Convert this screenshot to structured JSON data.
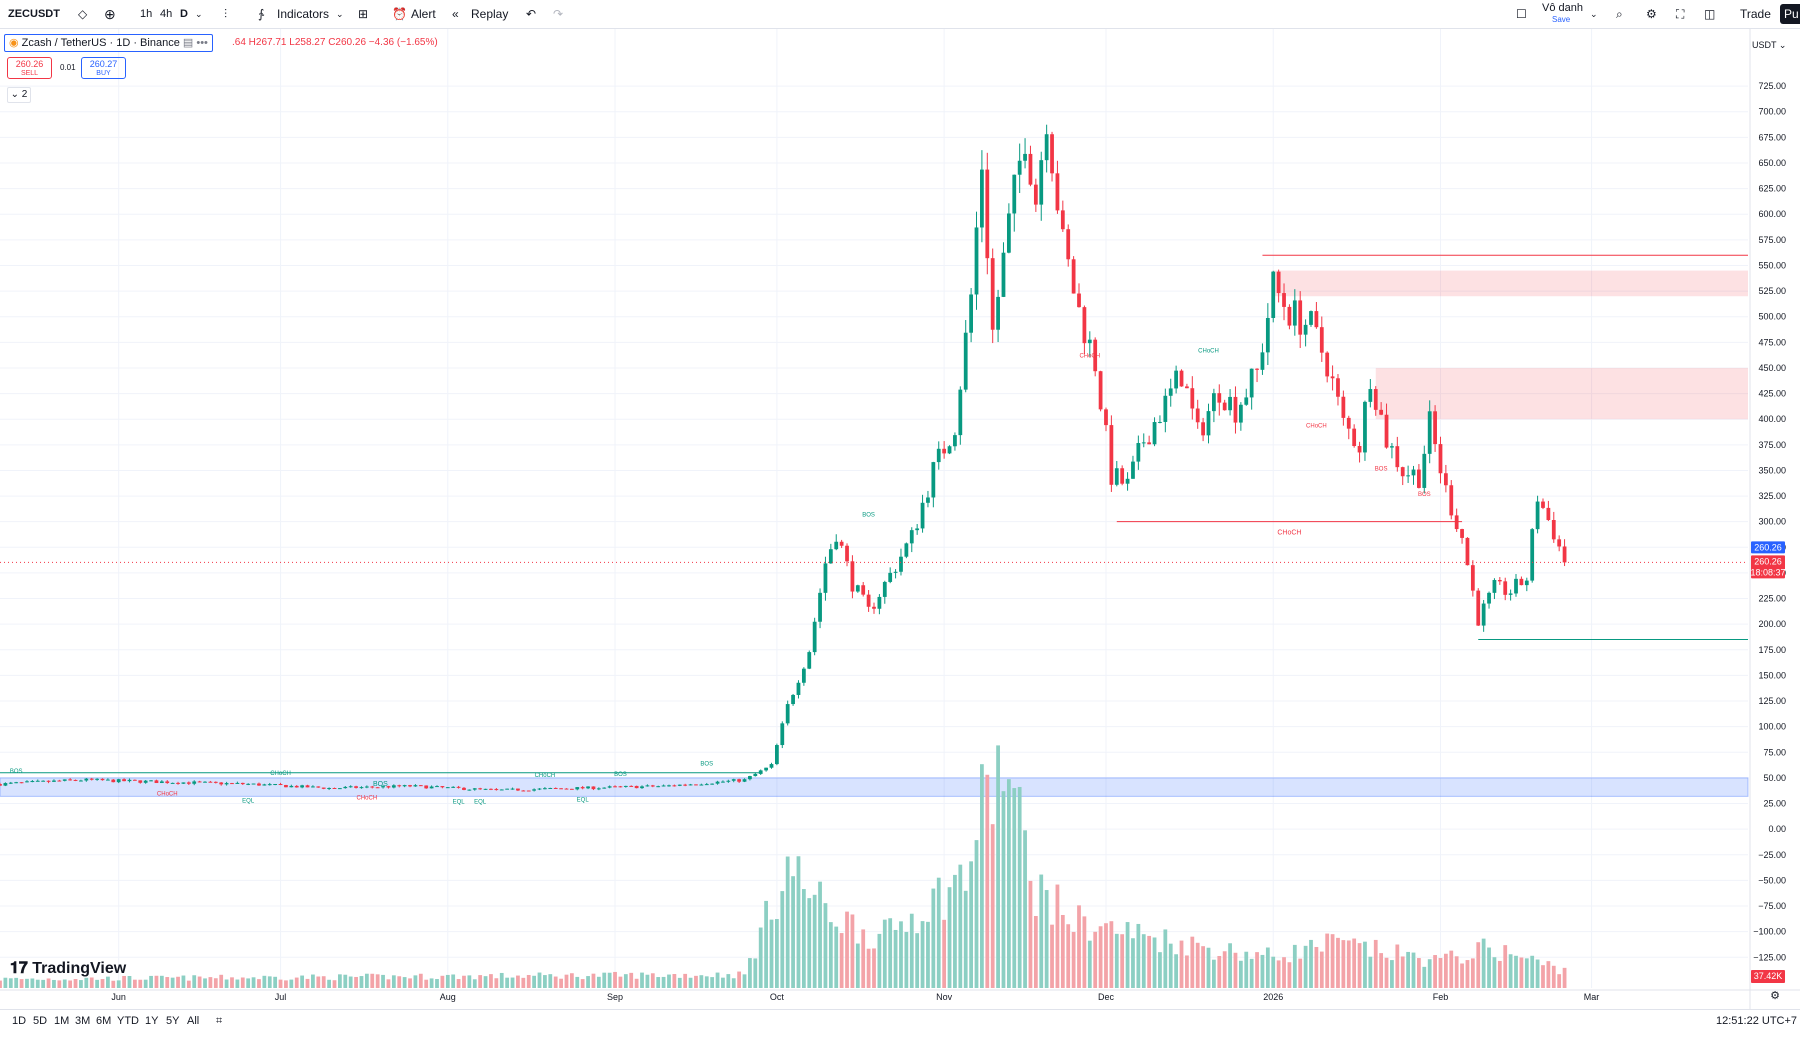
{
  "toolbar": {
    "symbol": "ZECUSDT",
    "tf_1h": "1h",
    "tf_4h": "4h",
    "tf_d": "D",
    "indicators": "Indicators",
    "alert": "Alert",
    "replay": "Replay",
    "user_name": "Vô danh",
    "save": "Save",
    "trade": "Trade",
    "publish": "Pu"
  },
  "legend": {
    "title": "Zcash / TetherUS · 1D · Binance",
    "ohlc": ".64 H267.71 L258.27 C260.26 −4.36 (−1.65%)"
  },
  "trade": {
    "sell_price": "260.26",
    "sell_label": "SELL",
    "spread": "0.01",
    "buy_price": "260.27",
    "buy_label": "BUY",
    "collapse": "2"
  },
  "price_axis": {
    "currency": "USDT",
    "current_price": "260.26",
    "current_price_2": "260.26",
    "countdown": "18:08:37",
    "volume_label": "37.42K"
  },
  "bottom": {
    "ranges": [
      "1D",
      "5D",
      "1M",
      "3M",
      "6M",
      "YTD",
      "1Y",
      "5Y",
      "All"
    ],
    "clock": "12:51:22 UTC+7"
  },
  "branding": {
    "logo_text": "TradingView"
  },
  "colors": {
    "up": "#089981",
    "down": "#f23645",
    "up_vol": "#8ccfc3",
    "down_vol": "#f3a3a8",
    "zone": "#2962ff"
  },
  "chart_data": {
    "type": "candlestick",
    "title": "Zcash / TetherUS · 1D · Binance",
    "y_ticks": [
      725,
      700,
      675,
      650,
      625,
      600,
      575,
      550,
      525,
      500,
      475,
      450,
      425,
      400,
      375,
      350,
      325,
      300,
      275,
      250,
      225,
      200,
      175,
      150,
      125,
      100,
      75,
      50,
      25,
      0,
      -25,
      -50,
      -75,
      -100,
      -125
    ],
    "y_tick_labels": [
      "725.00",
      "700.00",
      "675.00",
      "650.00",
      "625.00",
      "600.00",
      "575.00",
      "550.00",
      "525.00",
      "500.00",
      "475.00",
      "450.00",
      "425.00",
      "400.00",
      "375.00",
      "350.00",
      "325.00",
      "300.00",
      "275.00",
      "250.00",
      "225.00",
      "200.00",
      "175.00",
      "150.00",
      "125.00",
      "100.00",
      "75.00",
      "50.00",
      "25.00",
      "0.00",
      "−25.00",
      "−50.00",
      "−75.00",
      "−100.00",
      "−125.00"
    ],
    "ylim": [
      -155,
      770
    ],
    "x_labels": [
      {
        "label": "Jun",
        "date": "2025-06-01"
      },
      {
        "label": "Jul",
        "date": "2025-07-01"
      },
      {
        "label": "Aug",
        "date": "2025-08-01"
      },
      {
        "label": "Sep",
        "date": "2025-09-01"
      },
      {
        "label": "Oct",
        "date": "2025-10-01"
      },
      {
        "label": "Nov",
        "date": "2025-11-01"
      },
      {
        "label": "Dec",
        "date": "2025-12-01"
      },
      {
        "label": "2026",
        "date": "2026-01-01"
      },
      {
        "label": "Feb",
        "date": "2026-02-01"
      },
      {
        "label": "Mar",
        "date": "2026-03-01"
      }
    ],
    "x_range": [
      "2025-05-10",
      "2026-03-30"
    ],
    "price_path": [
      [
        "2025-05-10",
        44
      ],
      [
        "2025-05-25",
        48
      ],
      [
        "2025-06-10",
        46
      ],
      [
        "2025-06-25",
        44
      ],
      [
        "2025-07-10",
        40
      ],
      [
        "2025-07-25",
        42
      ],
      [
        "2025-08-10",
        38
      ],
      [
        "2025-08-25",
        40
      ],
      [
        "2025-09-10",
        42
      ],
      [
        "2025-09-25",
        48
      ],
      [
        "2025-09-30",
        62
      ],
      [
        "2025-10-03",
        120
      ],
      [
        "2025-10-07",
        175
      ],
      [
        "2025-10-10",
        260
      ],
      [
        "2025-10-12",
        290
      ],
      [
        "2025-10-15",
        240
      ],
      [
        "2025-10-18",
        212
      ],
      [
        "2025-10-22",
        248
      ],
      [
        "2025-10-26",
        285
      ],
      [
        "2025-10-30",
        350
      ],
      [
        "2025-11-03",
        395
      ],
      [
        "2025-11-06",
        520
      ],
      [
        "2025-11-08",
        650
      ],
      [
        "2025-11-10",
        485
      ],
      [
        "2025-11-13",
        590
      ],
      [
        "2025-11-16",
        680
      ],
      [
        "2025-11-18",
        615
      ],
      [
        "2025-11-20",
        700
      ],
      [
        "2025-11-23",
        570
      ],
      [
        "2025-11-26",
        505
      ],
      [
        "2025-11-29",
        455
      ],
      [
        "2025-12-02",
        345
      ],
      [
        "2025-12-05",
        335
      ],
      [
        "2025-12-08",
        380
      ],
      [
        "2025-12-12",
        415
      ],
      [
        "2025-12-15",
        445
      ],
      [
        "2025-12-18",
        385
      ],
      [
        "2025-12-22",
        430
      ],
      [
        "2025-12-25",
        410
      ],
      [
        "2025-12-29",
        445
      ],
      [
        "2026-01-01",
        530
      ],
      [
        "2026-01-04",
        505
      ],
      [
        "2026-01-08",
        490
      ],
      [
        "2026-01-11",
        455
      ],
      [
        "2026-01-14",
        395
      ],
      [
        "2026-01-17",
        375
      ],
      [
        "2026-01-19",
        445
      ],
      [
        "2026-01-22",
        380
      ],
      [
        "2026-01-25",
        350
      ],
      [
        "2026-01-28",
        345
      ],
      [
        "2026-01-30",
        395
      ],
      [
        "2026-02-02",
        330
      ],
      [
        "2026-02-05",
        285
      ],
      [
        "2026-02-08",
        205
      ],
      [
        "2026-02-11",
        235
      ],
      [
        "2026-02-14",
        232
      ],
      [
        "2026-02-17",
        245
      ],
      [
        "2026-02-19",
        325
      ],
      [
        "2026-02-22",
        290
      ],
      [
        "2026-02-24",
        260.26
      ]
    ],
    "volume_profile": [
      [
        "2025-05-10",
        0.04
      ],
      [
        "2025-09-25",
        0.06
      ],
      [
        "2025-10-03",
        0.55
      ],
      [
        "2025-10-10",
        0.35
      ],
      [
        "2025-10-20",
        0.22
      ],
      [
        "2025-11-05",
        0.5
      ],
      [
        "2025-11-08",
        0.8
      ],
      [
        "2025-11-12",
        1.0
      ],
      [
        "2025-11-18",
        0.45
      ],
      [
        "2025-11-25",
        0.3
      ],
      [
        "2025-12-05",
        0.25
      ],
      [
        "2025-12-20",
        0.18
      ],
      [
        "2026-01-01",
        0.14
      ],
      [
        "2026-01-12",
        0.2
      ],
      [
        "2026-02-01",
        0.12
      ],
      [
        "2026-02-10",
        0.18
      ],
      [
        "2026-02-24",
        0.08
      ]
    ],
    "current_price": 260.26,
    "zones": [
      {
        "type": "supply",
        "from": "2026-01-01",
        "to": "2026-03-30",
        "low": 520,
        "high": 545
      },
      {
        "type": "supply",
        "from": "2026-01-20",
        "to": "2026-03-30",
        "low": 400,
        "high": 450
      },
      {
        "type": "demand",
        "from": "2025-05-10",
        "to": "2026-03-30",
        "low": 32,
        "high": 50
      }
    ],
    "levels": [
      {
        "price": 560,
        "from": "2025-12-30",
        "to": "2026-03-30",
        "color": "down"
      },
      {
        "price": 300,
        "from": "2025-12-03",
        "to": "2026-02-05",
        "color": "down",
        "label": "CHoCH"
      },
      {
        "price": 185,
        "from": "2026-02-08",
        "to": "2026-03-30",
        "color": "up"
      },
      {
        "price": 55,
        "from": "2025-05-10",
        "to": "2025-09-28",
        "color": "up",
        "label": "BOS"
      }
    ],
    "annotations": [
      {
        "text": "BOS",
        "date": "2025-10-18",
        "price": 305,
        "color": "up"
      },
      {
        "text": "CHoCH",
        "date": "2025-11-28",
        "price": 460,
        "color": "down"
      },
      {
        "text": "CHoCH",
        "date": "2025-12-20",
        "price": 465,
        "color": "up"
      },
      {
        "text": "CHoCH",
        "date": "2026-01-09",
        "price": 392,
        "color": "down"
      },
      {
        "text": "BOS",
        "date": "2026-01-21",
        "price": 350,
        "color": "down"
      },
      {
        "text": "BOS",
        "date": "2026-01-29",
        "price": 325,
        "color": "down"
      },
      {
        "text": "BOS",
        "date": "2025-05-13",
        "price": 55,
        "color": "up"
      },
      {
        "text": "CHoCH",
        "date": "2025-07-01",
        "price": 53,
        "color": "up"
      },
      {
        "text": "CHoCH",
        "date": "2025-06-10",
        "price": 33,
        "color": "down"
      },
      {
        "text": "CHoCH",
        "date": "2025-07-17",
        "price": 29,
        "color": "down"
      },
      {
        "text": "EQL",
        "date": "2025-06-25",
        "price": 26,
        "color": "up"
      },
      {
        "text": "EQL",
        "date": "2025-08-03",
        "price": 25,
        "color": "up"
      },
      {
        "text": "EQL",
        "date": "2025-08-07",
        "price": 25,
        "color": "up"
      },
      {
        "text": "CHoCH",
        "date": "2025-08-19",
        "price": 51,
        "color": "up"
      },
      {
        "text": "BOS",
        "date": "2025-09-02",
        "price": 52,
        "color": "up"
      },
      {
        "text": "EQL",
        "date": "2025-08-26",
        "price": 27,
        "color": "up"
      },
      {
        "text": "BOS",
        "date": "2025-09-18",
        "price": 62,
        "color": "up"
      }
    ]
  }
}
